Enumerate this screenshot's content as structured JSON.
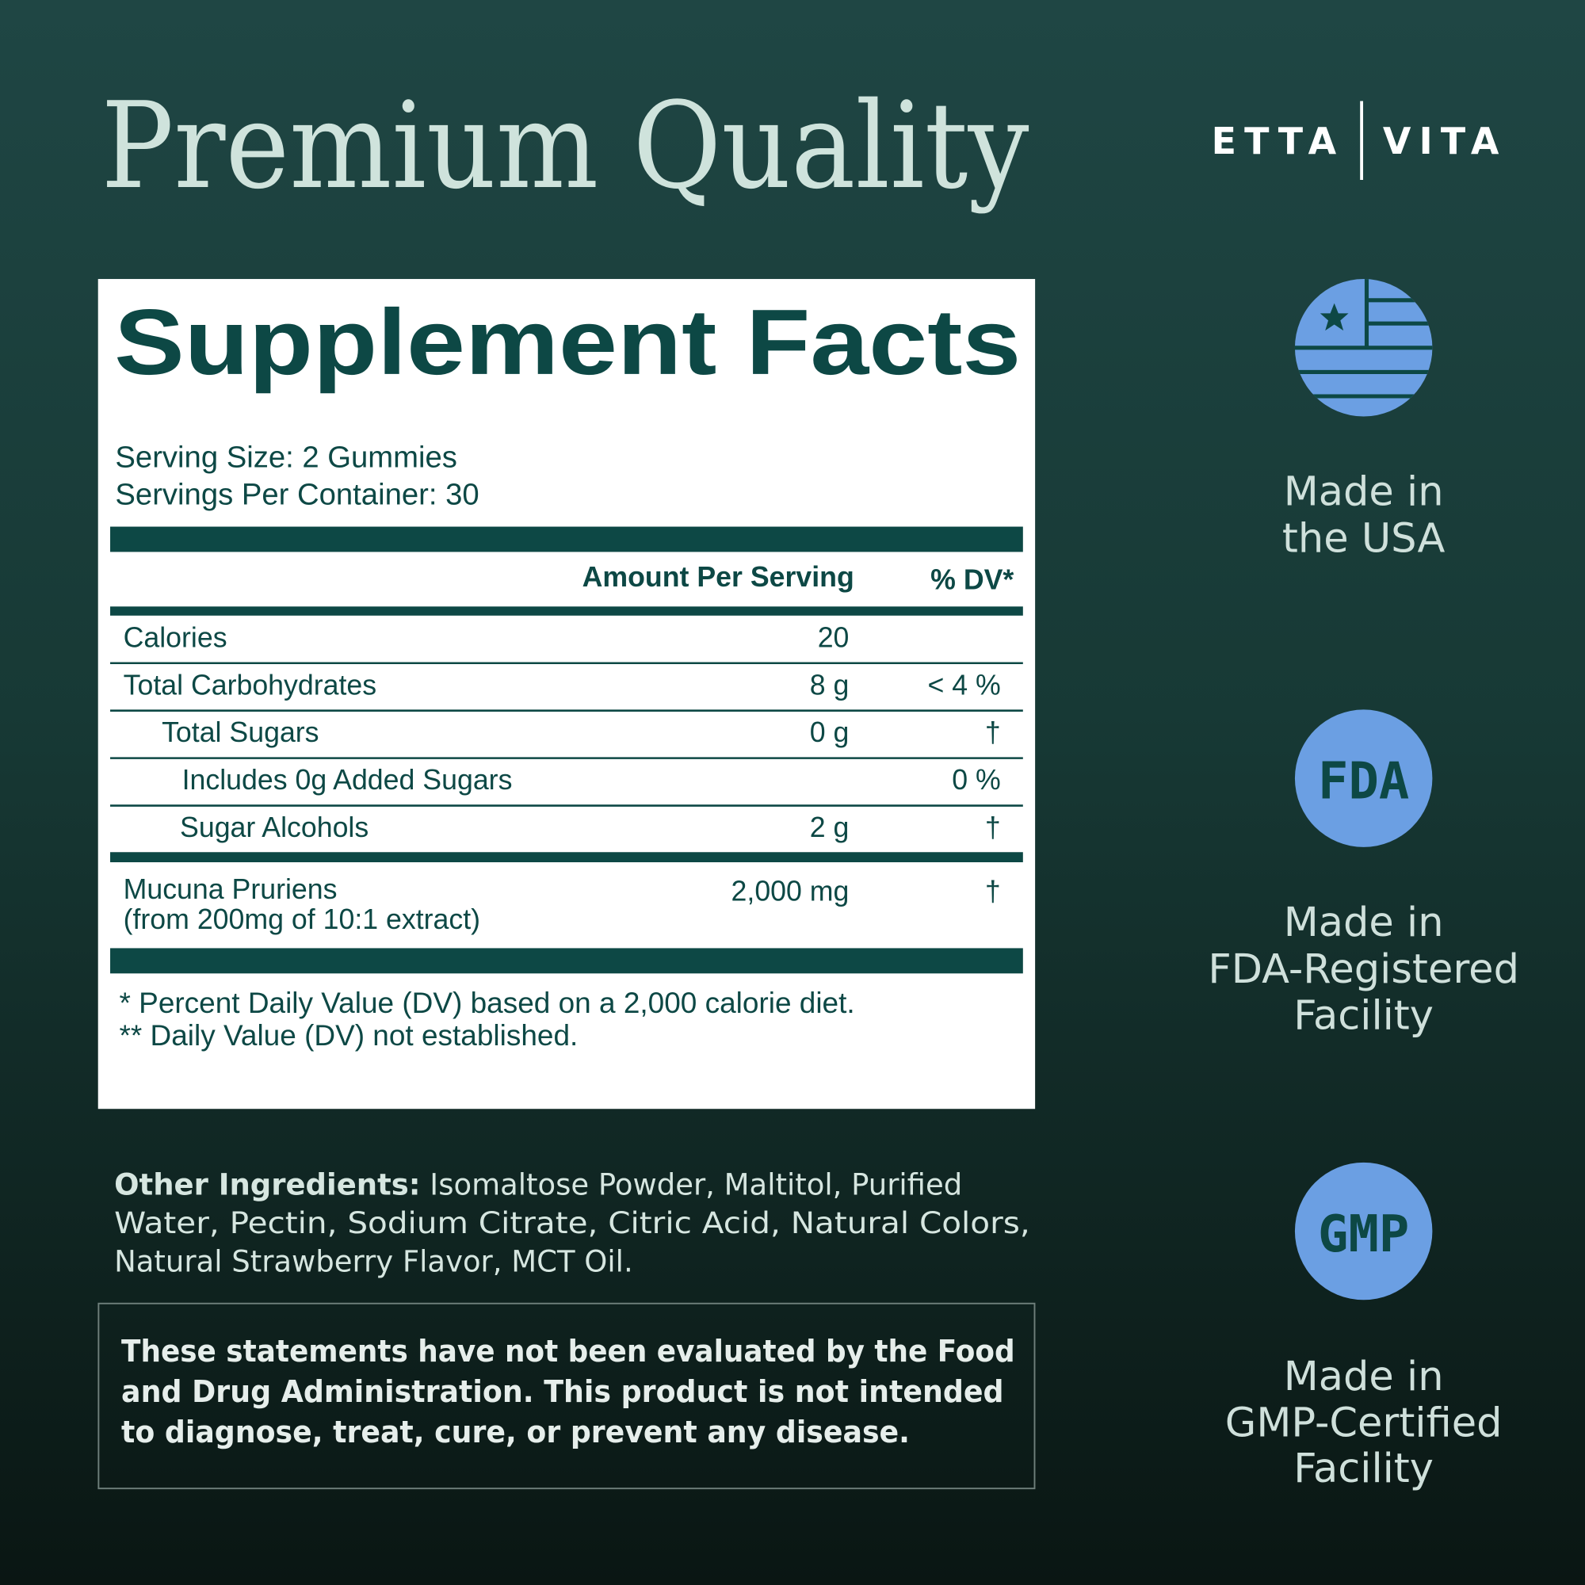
{
  "header": {
    "title": "Premium Quality",
    "brand": [
      "ETTA",
      "VITA"
    ]
  },
  "supplement_facts": {
    "title": "Supplement Facts",
    "serving_size": "Serving Size: 2 Gummies",
    "servings_per_container": "Servings Per Container: 30",
    "columns": [
      "Amount Per Serving",
      "% DV*"
    ],
    "rows": [
      {
        "name": "Calories",
        "amount": "20"
      },
      {
        "name": "Total Carbohydrates",
        "amount": "8 g",
        "dv": "< 4 %"
      },
      {
        "name": "Total Sugars",
        "amount": "0 g",
        "dv": "†"
      },
      {
        "name": "Includes 0g Added Sugars",
        "dv": "0 %"
      },
      {
        "name": "Sugar Alcohols",
        "amount": "2 g",
        "dv": "†"
      },
      {
        "name": [
          "Mucuna Pruriens",
          "(from 200mg of 10:1 extract)"
        ],
        "amount": "2,000 mg",
        "dv": "†"
      }
    ],
    "footnotes": [
      "* Percent Daily Value (DV) based on a 2,000 calorie diet.",
      "** Daily Value (DV) not established."
    ]
  },
  "other_ingredients": {
    "label": "Other Ingredients:",
    "lines": [
      "Isomaltose Powder, Maltitol, Purified",
      "Water, Pectin, Sodium Citrate, Citric Acid, Natural Colors,",
      "Natural Strawberry Flavor, MCT Oil."
    ]
  },
  "disclaimer": [
    "These statements have not been evaluated by the Food",
    "and Drug Administration. This product is not intended",
    "to diagnose, treat, cure, or prevent any disease."
  ],
  "badges": [
    {
      "label": [
        "Made in",
        "the USA"
      ]
    },
    {
      "icon_text": "FDA",
      "label": [
        "Made in",
        "FDA-Registered",
        "Facility"
      ]
    },
    {
      "icon_text": "GMP",
      "label": [
        "Made in",
        "GMP-Certified",
        "Facility"
      ]
    }
  ]
}
